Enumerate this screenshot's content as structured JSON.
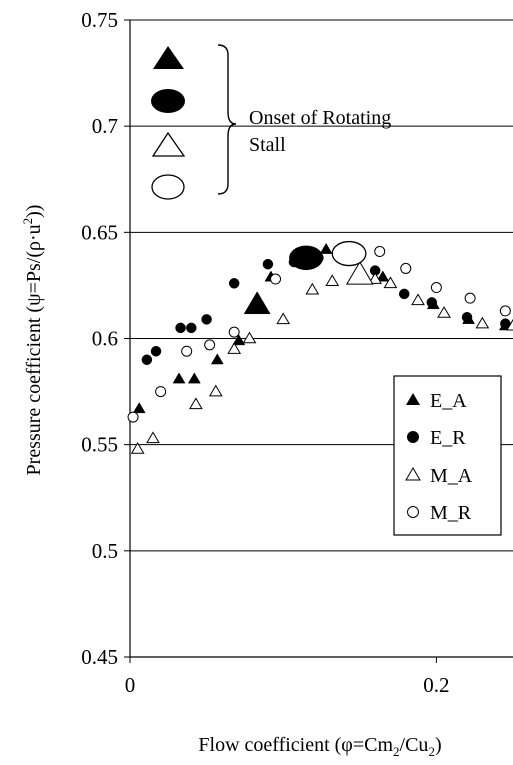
{
  "chart_data": {
    "type": "scatter",
    "xlabel_pre": "Flow coefficient (φ=Cm",
    "xlabel_sub1": "2",
    "xlabel_mid": "/Cu",
    "xlabel_sub2": "2",
    "xlabel_post": ")",
    "ylabel_pre": "Pressure coefficient (ψ=Ps/(ρ·u",
    "ylabel_sup": "2",
    "ylabel_post": "))",
    "xlim": [
      0,
      0.25
    ],
    "ylim": [
      0.45,
      0.75
    ],
    "x_ticks": [
      0,
      0.2
    ],
    "x_tick_labels": [
      "0",
      "0.2"
    ],
    "y_ticks": [
      0.45,
      0.5,
      0.55,
      0.6,
      0.65,
      0.7,
      0.75
    ],
    "y_tick_labels": [
      "0.45",
      "0.5",
      "0.55",
      "0.6",
      "0.65",
      "0.7",
      "0.75"
    ],
    "grid": "horizontal",
    "legend_position": "right",
    "series": [
      {
        "name": "E_A",
        "marker": "filled-triangle",
        "points": [
          [
            0.006,
            0.567
          ],
          [
            0.032,
            0.581
          ],
          [
            0.042,
            0.581
          ],
          [
            0.057,
            0.59
          ],
          [
            0.071,
            0.599
          ],
          [
            0.092,
            0.629
          ],
          [
            0.128,
            0.642
          ],
          [
            0.165,
            0.629
          ],
          [
            0.198,
            0.616
          ],
          [
            0.221,
            0.609
          ],
          [
            0.245,
            0.606
          ]
        ]
      },
      {
        "name": "E_R",
        "marker": "filled-circle",
        "points": [
          [
            0.011,
            0.59
          ],
          [
            0.017,
            0.594
          ],
          [
            0.033,
            0.605
          ],
          [
            0.04,
            0.605
          ],
          [
            0.05,
            0.609
          ],
          [
            0.068,
            0.626
          ],
          [
            0.09,
            0.635
          ],
          [
            0.107,
            0.636
          ],
          [
            0.112,
            0.637
          ],
          [
            0.123,
            0.638
          ],
          [
            0.138,
            0.639
          ],
          [
            0.16,
            0.632
          ],
          [
            0.179,
            0.621
          ],
          [
            0.197,
            0.617
          ],
          [
            0.22,
            0.61
          ],
          [
            0.245,
            0.607
          ]
        ]
      },
      {
        "name": "M_A",
        "marker": "open-triangle",
        "points": [
          [
            0.005,
            0.548
          ],
          [
            0.015,
            0.553
          ],
          [
            0.043,
            0.569
          ],
          [
            0.056,
            0.575
          ],
          [
            0.068,
            0.595
          ],
          [
            0.078,
            0.6
          ],
          [
            0.1,
            0.609
          ],
          [
            0.119,
            0.623
          ],
          [
            0.132,
            0.627
          ],
          [
            0.16,
            0.628
          ],
          [
            0.17,
            0.626
          ],
          [
            0.188,
            0.618
          ],
          [
            0.205,
            0.612
          ],
          [
            0.23,
            0.607
          ],
          [
            0.25,
            0.606
          ]
        ]
      },
      {
        "name": "M_R",
        "marker": "open-circle",
        "points": [
          [
            0.002,
            0.563
          ],
          [
            0.02,
            0.575
          ],
          [
            0.037,
            0.594
          ],
          [
            0.052,
            0.597
          ],
          [
            0.068,
            0.603
          ],
          [
            0.095,
            0.628
          ],
          [
            0.118,
            0.636
          ],
          [
            0.14,
            0.643
          ],
          [
            0.163,
            0.641
          ],
          [
            0.18,
            0.633
          ],
          [
            0.2,
            0.624
          ],
          [
            0.222,
            0.619
          ],
          [
            0.245,
            0.613
          ]
        ]
      }
    ],
    "stall_onset": {
      "label_line1": "Onset of Rotating",
      "label_line2": "Stall",
      "points": [
        {
          "series": "E_A",
          "marker": "filled-triangle",
          "x": 0.083,
          "y": 0.616
        },
        {
          "series": "E_R",
          "marker": "filled-ellipse",
          "x": 0.115,
          "y": 0.638
        },
        {
          "series": "M_A",
          "marker": "open-triangle",
          "x": 0.15,
          "y": 0.63
        },
        {
          "series": "M_R",
          "marker": "open-ellipse",
          "x": 0.143,
          "y": 0.64
        }
      ]
    }
  }
}
